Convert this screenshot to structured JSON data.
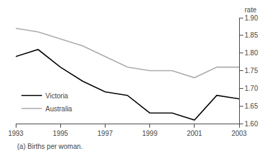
{
  "chart_data": {
    "type": "line",
    "x": [
      1993,
      1994,
      1995,
      1996,
      1997,
      1998,
      1999,
      2000,
      2001,
      2002,
      2003
    ],
    "series": [
      {
        "name": "Victoria",
        "color": "#000000",
        "values": [
          1.79,
          1.81,
          1.76,
          1.72,
          1.69,
          1.68,
          1.63,
          1.63,
          1.61,
          1.68,
          1.67
        ]
      },
      {
        "name": "Australia",
        "color": "#aaaaaa",
        "values": [
          1.87,
          1.86,
          1.84,
          1.82,
          1.79,
          1.76,
          1.75,
          1.75,
          1.73,
          1.76,
          1.76
        ]
      }
    ],
    "ylabel": "rate",
    "annotations": [
      "(a) Births per woman."
    ],
    "xlim": [
      1993,
      2003
    ],
    "xticks": [
      1993,
      1995,
      1997,
      1999,
      2001,
      2003
    ],
    "ylim": [
      1.6,
      1.9
    ],
    "yticks": [
      {
        "value": 1.6,
        "label": "1.60"
      },
      1.65,
      {
        "value": 1.7,
        "label": "1.70"
      },
      1.75,
      {
        "value": 1.8,
        "label": "1.80"
      },
      1.85,
      {
        "value": 1.9,
        "label": "1.90"
      }
    ],
    "grid": false,
    "legend": "lower left"
  }
}
